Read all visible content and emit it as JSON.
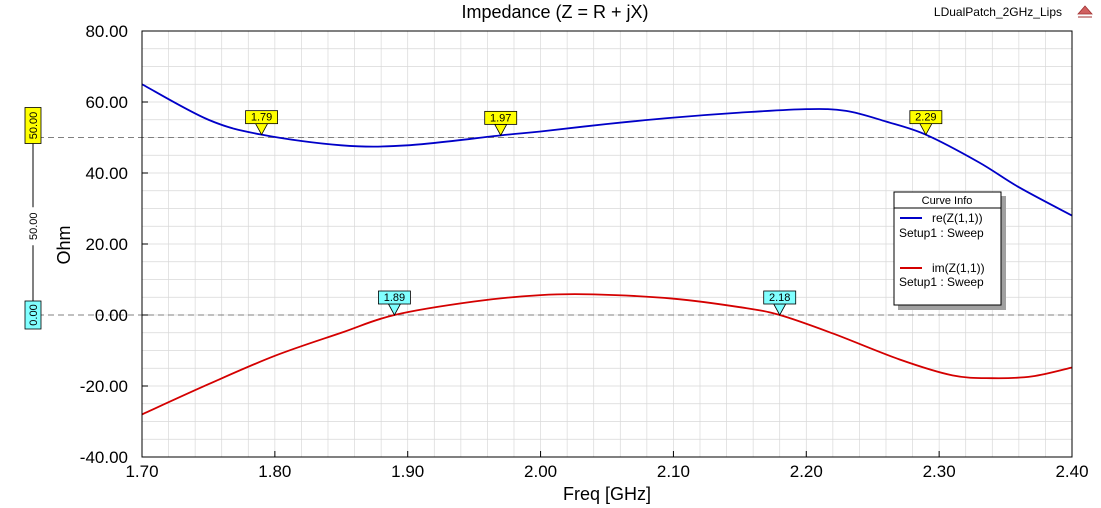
{
  "project_name": "LDualPatch_2GHz_Lips",
  "chart_data": {
    "type": "line",
    "title": "Impedance (Z = R + jX)",
    "xlabel": "Freq [GHz]",
    "ylabel": "Ohm",
    "xlim": [
      1.7,
      2.4
    ],
    "ylim": [
      -40,
      80
    ],
    "x_ticks": [
      "1.70",
      "1.80",
      "1.90",
      "2.00",
      "2.10",
      "2.20",
      "2.30",
      "2.40"
    ],
    "y_ticks": [
      "80.00",
      "60.00",
      "40.00",
      "20.00",
      "0.00",
      "-20.00",
      "-40.00"
    ],
    "grid": true,
    "legend_title": "Curve Info",
    "legend_position": "right",
    "series": [
      {
        "name": "re(Z(1,1))",
        "setup": "Setup1 : Sweep",
        "color": "#0000c8",
        "x": [
          1.7,
          1.75,
          1.79,
          1.85,
          1.9,
          1.97,
          2.0,
          2.05,
          2.1,
          2.15,
          2.2,
          2.23,
          2.26,
          2.29,
          2.33,
          2.36,
          2.4
        ],
        "y": [
          65.0,
          55.0,
          50.8,
          47.8,
          47.8,
          50.6,
          51.7,
          53.8,
          55.6,
          57.0,
          58.0,
          57.5,
          54.5,
          50.8,
          43.0,
          36.0,
          28.0
        ]
      },
      {
        "name": "im(Z(1,1))",
        "setup": "Setup1 : Sweep",
        "color": "#d40000",
        "x": [
          1.7,
          1.75,
          1.8,
          1.85,
          1.89,
          1.95,
          2.0,
          2.04,
          2.1,
          2.15,
          2.18,
          2.22,
          2.27,
          2.31,
          2.34,
          2.37,
          2.4
        ],
        "y": [
          -28.0,
          -19.5,
          -11.5,
          -5.0,
          0.0,
          3.8,
          5.6,
          5.8,
          4.6,
          2.2,
          0.0,
          -5.2,
          -12.5,
          -17.0,
          -17.8,
          -17.3,
          -14.8
        ]
      }
    ],
    "reference_lines": [
      50.0,
      0.0
    ],
    "markers": [
      {
        "label": "1.79",
        "x": 1.79,
        "y": 50.8,
        "style": "yellow"
      },
      {
        "label": "1.97",
        "x": 1.97,
        "y": 50.6,
        "style": "yellow"
      },
      {
        "label": "2.29",
        "x": 2.29,
        "y": 50.8,
        "style": "yellow"
      },
      {
        "label": "1.89",
        "x": 1.89,
        "y": 0.0,
        "style": "cyan"
      },
      {
        "label": "2.18",
        "x": 2.18,
        "y": 0.0,
        "style": "cyan"
      }
    ],
    "sliders": {
      "top_value": "50.00",
      "bottom_value": "0.00",
      "difference": "50.00"
    }
  }
}
